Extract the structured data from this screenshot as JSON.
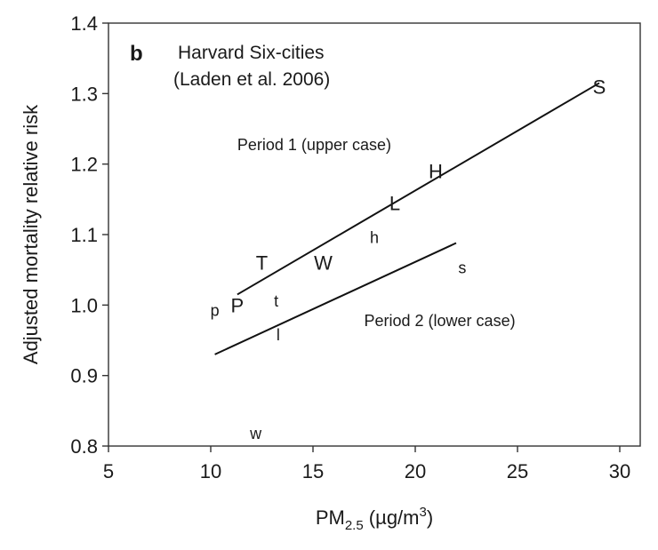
{
  "chart_data": {
    "type": "scatter",
    "panel_label": "b",
    "title_lines": [
      "Harvard Six-cities",
      "(Laden et al. 2006)"
    ],
    "xlabel": {
      "prefix": "PM",
      "subscript": "2.5",
      "suffix": " (",
      "unit_greek": "µ",
      "unit_mid": "g/m",
      "unit_sup": "3",
      "close": ")"
    },
    "ylabel": "Adjusted mortality relative risk",
    "xlim": [
      5,
      31
    ],
    "ylim": [
      0.8,
      1.4
    ],
    "xticks": [
      5,
      10,
      15,
      20,
      25,
      30
    ],
    "yticks": [
      0.8,
      0.9,
      1.0,
      1.1,
      1.2,
      1.3,
      1.4
    ],
    "series": [
      {
        "name": "Period 1 (upper case)",
        "points": [
          {
            "label": "S",
            "x": 29.0,
            "y": 1.31
          },
          {
            "label": "H",
            "x": 21.0,
            "y": 1.19
          },
          {
            "label": "L",
            "x": 19.0,
            "y": 1.145
          },
          {
            "label": "T",
            "x": 12.5,
            "y": 1.06
          },
          {
            "label": "W",
            "x": 15.5,
            "y": 1.06
          },
          {
            "label": "P",
            "x": 11.3,
            "y": 1.0
          }
        ],
        "fit_line": [
          [
            11.3,
            1.015
          ],
          [
            29.0,
            1.315
          ]
        ]
      },
      {
        "name": "Period 2 (lower case)",
        "points": [
          {
            "label": "h",
            "x": 18.0,
            "y": 1.098
          },
          {
            "label": "s",
            "x": 22.3,
            "y": 1.055
          },
          {
            "label": "t",
            "x": 13.2,
            "y": 1.008
          },
          {
            "label": "p",
            "x": 10.2,
            "y": 0.995
          },
          {
            "label": "l",
            "x": 13.3,
            "y": 0.96
          },
          {
            "label": "w",
            "x": 12.2,
            "y": 0.82
          }
        ],
        "fit_line": [
          [
            10.2,
            0.93
          ],
          [
            22.0,
            1.088
          ]
        ]
      }
    ],
    "annotations": [
      {
        "text": "Period 1 (upper case)",
        "x": 11.3,
        "y": 1.22
      },
      {
        "text": "Period 2 (lower case)",
        "x": 17.5,
        "y": 0.97
      }
    ]
  }
}
